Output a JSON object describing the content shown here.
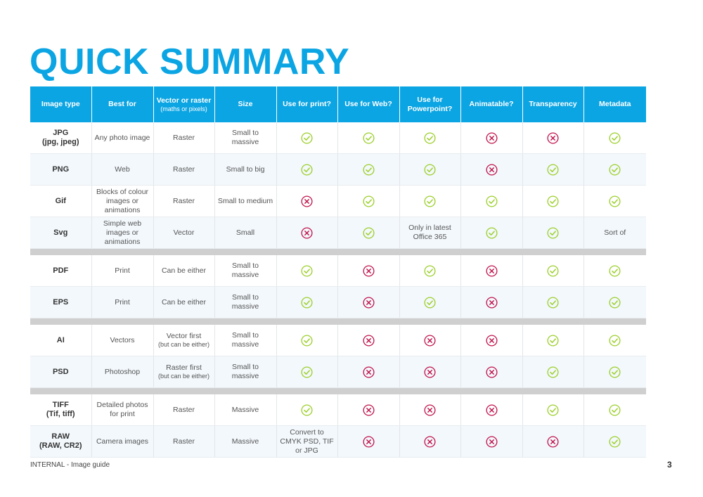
{
  "title": "QUICK SUMMARY",
  "colors": {
    "accent": "#0ba5e3",
    "yes": "#9ccf2b",
    "no": "#c0144b",
    "separator": "#cfcfcf"
  },
  "icons": {
    "yes": "check-circle-icon",
    "no": "cross-circle-icon"
  },
  "columns": {
    "image_type": "Image type",
    "best_for": "Best for",
    "vector_raster": "Vector or raster",
    "vector_raster_sub": "(maths or pixels)",
    "size": "Size",
    "print": "Use for print?",
    "web": "Use for Web?",
    "powerpoint": "Use for Powerpoint?",
    "animatable": "Animatable?",
    "transparency": "Transparency",
    "metadata": "Metadata"
  },
  "rows": [
    {
      "type": "JPG",
      "type_sub": "(jpg, jpeg)",
      "best_for": "Any photo image",
      "vr": "Raster",
      "vr_sub": "",
      "size": "Small to massive",
      "print": "yes",
      "web": "yes",
      "powerpoint": "yes",
      "animatable": "no",
      "transparency": "no",
      "metadata": "yes"
    },
    {
      "type": "PNG",
      "type_sub": "",
      "best_for": "Web",
      "vr": "Raster",
      "vr_sub": "",
      "size": "Small to big",
      "print": "yes",
      "web": "yes",
      "powerpoint": "yes",
      "animatable": "no",
      "transparency": "yes",
      "metadata": "yes"
    },
    {
      "type": "Gif",
      "type_sub": "",
      "best_for": "Blocks of colour images or animations",
      "vr": "Raster",
      "vr_sub": "",
      "size": "Small to medium",
      "print": "no",
      "web": "yes",
      "powerpoint": "yes",
      "animatable": "yes",
      "transparency": "yes",
      "metadata": "yes"
    },
    {
      "type": "Svg",
      "type_sub": "",
      "best_for": "Simple web images or animations",
      "vr": "Vector",
      "vr_sub": "",
      "size": "Small",
      "print": "no",
      "web": "yes",
      "powerpoint": "Only in latest Office 365",
      "animatable": "yes",
      "transparency": "yes",
      "metadata": "Sort of"
    },
    {
      "separator": true
    },
    {
      "type": "PDF",
      "type_sub": "",
      "best_for": "Print",
      "vr": "Can be either",
      "vr_sub": "",
      "size": "Small to massive",
      "print": "yes",
      "web": "no",
      "powerpoint": "yes",
      "animatable": "no",
      "transparency": "yes",
      "metadata": "yes"
    },
    {
      "type": "EPS",
      "type_sub": "",
      "best_for": "Print",
      "vr": "Can be either",
      "vr_sub": "",
      "size": "Small to massive",
      "print": "yes",
      "web": "no",
      "powerpoint": "yes",
      "animatable": "no",
      "transparency": "yes",
      "metadata": "yes"
    },
    {
      "separator": true
    },
    {
      "type": "AI",
      "type_sub": "",
      "best_for": "Vectors",
      "vr": "Vector first",
      "vr_sub": "(but can be either)",
      "size": "Small to massive",
      "print": "yes",
      "web": "no",
      "powerpoint": "no",
      "animatable": "no",
      "transparency": "yes",
      "metadata": "yes"
    },
    {
      "type": "PSD",
      "type_sub": "",
      "best_for": "Photoshop",
      "vr": "Raster first",
      "vr_sub": "(but can be either)",
      "size": "Small to massive",
      "print": "yes",
      "web": "no",
      "powerpoint": "no",
      "animatable": "no",
      "transparency": "yes",
      "metadata": "yes"
    },
    {
      "separator": true
    },
    {
      "type": "TIFF",
      "type_sub": "(Tif, tiff)",
      "best_for": "Detailed photos for print",
      "vr": "Raster",
      "vr_sub": "",
      "size": "Massive",
      "print": "yes",
      "web": "no",
      "powerpoint": "no",
      "animatable": "no",
      "transparency": "yes",
      "metadata": "yes"
    },
    {
      "type": "RAW",
      "type_sub": "(RAW, CR2)",
      "best_for": "Camera images",
      "vr": "Raster",
      "vr_sub": "",
      "size": "Massive",
      "print": "Convert to CMYK PSD, TIF or JPG",
      "web": "no",
      "powerpoint": "no",
      "animatable": "no",
      "transparency": "no",
      "metadata": "yes"
    }
  ],
  "footer": {
    "label": "INTERNAL - Image guide",
    "page_number": "3"
  }
}
